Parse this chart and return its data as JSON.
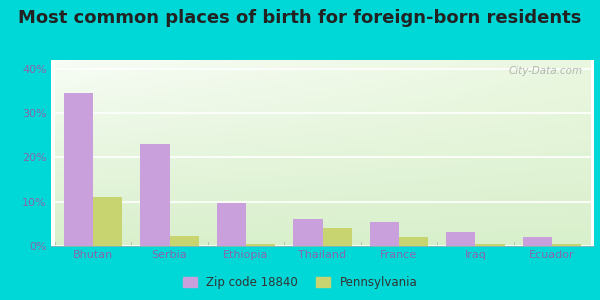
{
  "title": "Most common places of birth for foreign-born residents",
  "categories": [
    "Bhutan",
    "Serbia",
    "Ethiopia",
    "Thailand",
    "France",
    "Iraq",
    "Ecuador"
  ],
  "zip_values": [
    34.5,
    23.0,
    9.7,
    6.2,
    5.5,
    3.2,
    2.1
  ],
  "pa_values": [
    11.0,
    2.2,
    0.5,
    4.0,
    2.0,
    0.5,
    0.5
  ],
  "zip_color": "#c9a0dc",
  "pa_color": "#c8d470",
  "bar_width": 0.38,
  "ylim": [
    0,
    42
  ],
  "yticks": [
    0,
    10,
    20,
    30,
    40
  ],
  "ytick_labels": [
    "0%",
    "10%",
    "20%",
    "30%",
    "40%"
  ],
  "background_outer": "#00d8d8",
  "legend_zip_label": "Zip code 18840",
  "legend_pa_label": "Pennsylvania",
  "watermark": "City-Data.com",
  "title_fontsize": 13,
  "tick_color": "#8866aa",
  "grid_color": "#dddddd"
}
